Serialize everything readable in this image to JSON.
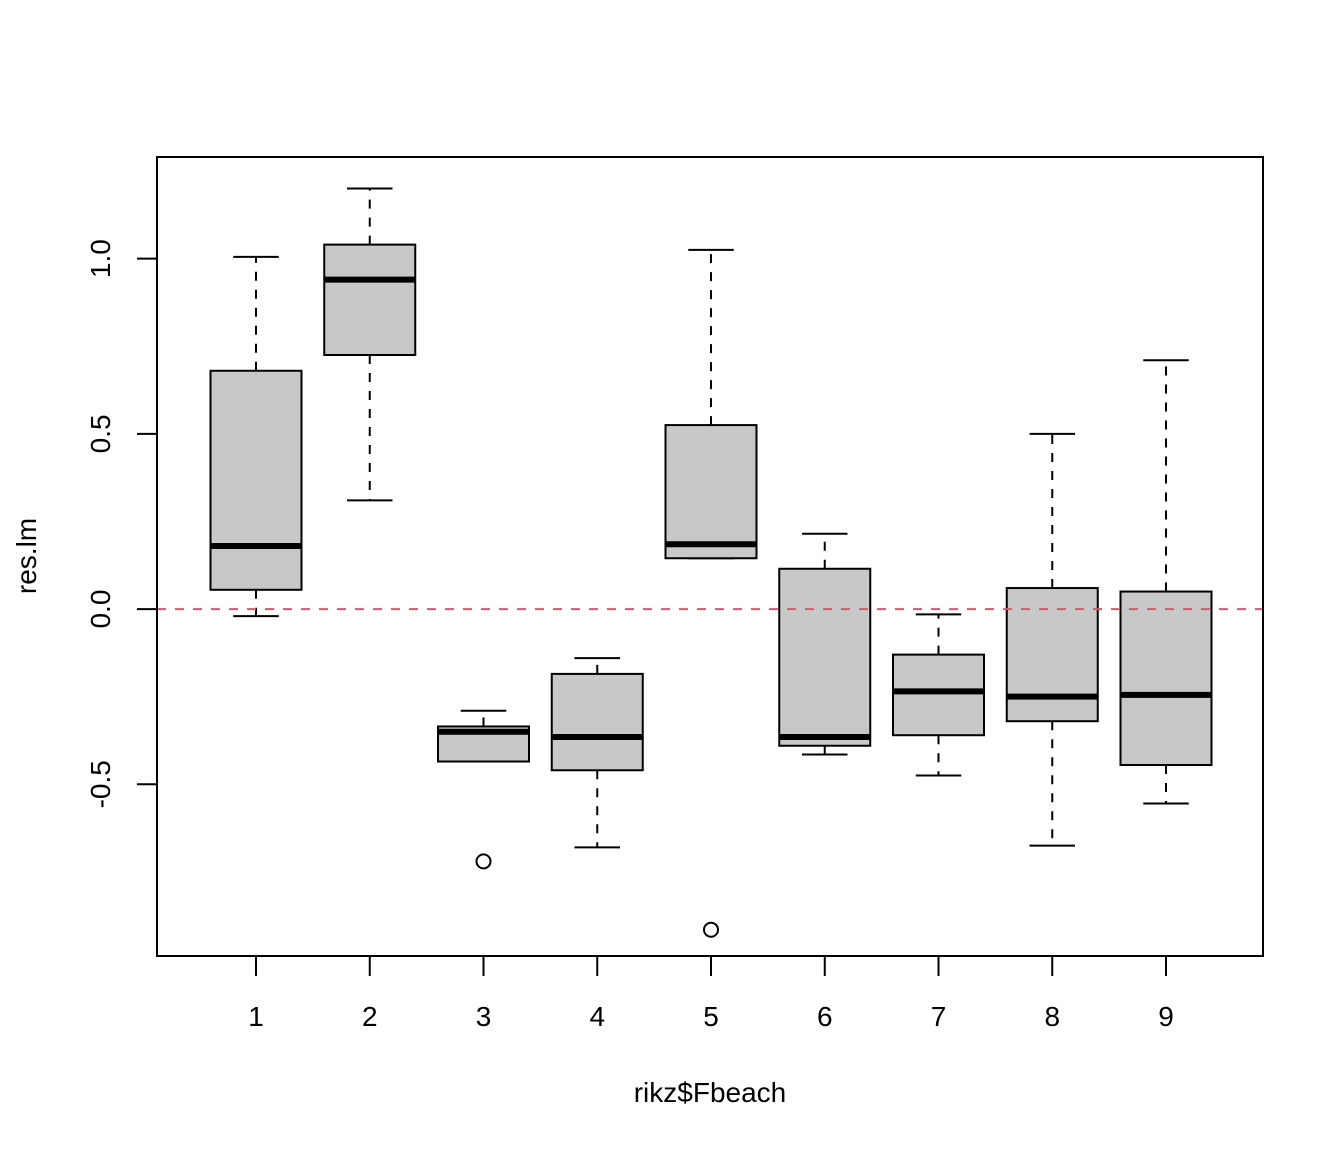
{
  "chart_data": {
    "type": "boxplot",
    "xlabel": "rikz$Fbeach",
    "ylabel": "res.lm",
    "categories": [
      "1",
      "2",
      "3",
      "4",
      "5",
      "6",
      "7",
      "8",
      "9"
    ],
    "ylim": [
      -0.99,
      1.29
    ],
    "yticks": [
      {
        "value": -0.5,
        "label": "-0.5"
      },
      {
        "value": 0.0,
        "label": "0.0"
      },
      {
        "value": 0.5,
        "label": "0.5"
      },
      {
        "value": 1.0,
        "label": "1.0"
      }
    ],
    "boxes": [
      {
        "label": "1",
        "min": -0.02,
        "q1": 0.055,
        "median": 0.18,
        "q3": 0.68,
        "max": 1.005,
        "outliers": []
      },
      {
        "label": "2",
        "min": 0.31,
        "q1": 0.725,
        "median": 0.94,
        "q3": 1.04,
        "max": 1.2,
        "outliers": []
      },
      {
        "label": "3",
        "min": -0.435,
        "q1": -0.435,
        "median": -0.35,
        "q3": -0.335,
        "max": -0.29,
        "outliers": [
          -0.72
        ]
      },
      {
        "label": "4",
        "min": -0.68,
        "q1": -0.46,
        "median": -0.365,
        "q3": -0.185,
        "max": -0.14,
        "outliers": []
      },
      {
        "label": "5",
        "min": 0.145,
        "q1": 0.145,
        "median": 0.185,
        "q3": 0.525,
        "max": 1.025,
        "outliers": [
          -0.915
        ]
      },
      {
        "label": "6",
        "min": -0.415,
        "q1": -0.39,
        "median": -0.365,
        "q3": 0.115,
        "max": 0.215,
        "outliers": []
      },
      {
        "label": "7",
        "min": -0.475,
        "q1": -0.36,
        "median": -0.235,
        "q3": -0.13,
        "max": -0.015,
        "outliers": []
      },
      {
        "label": "8",
        "min": -0.675,
        "q1": -0.32,
        "median": -0.25,
        "q3": 0.06,
        "max": 0.5,
        "outliers": []
      },
      {
        "label": "9",
        "min": -0.555,
        "q1": -0.445,
        "median": -0.245,
        "q3": 0.05,
        "max": 0.71,
        "outliers": []
      }
    ],
    "reference_line": {
      "y": 0.0,
      "style": "dashed",
      "color": "#df536b"
    },
    "box_fill": "#c8c8c8",
    "grid": false,
    "legend": "none"
  }
}
